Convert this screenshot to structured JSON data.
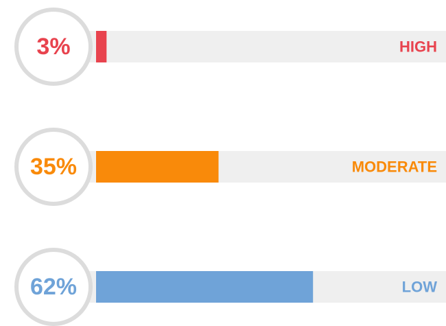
{
  "chart_data": {
    "type": "bar",
    "orientation": "horizontal",
    "categories": [
      "HIGH",
      "MODERATE",
      "LOW"
    ],
    "values": [
      3,
      35,
      62
    ],
    "value_labels": [
      "3%",
      "35%",
      "62%"
    ],
    "colors": [
      "#e8434e",
      "#f98a0a",
      "#6fa3d8"
    ],
    "xlim": [
      0,
      100
    ]
  }
}
